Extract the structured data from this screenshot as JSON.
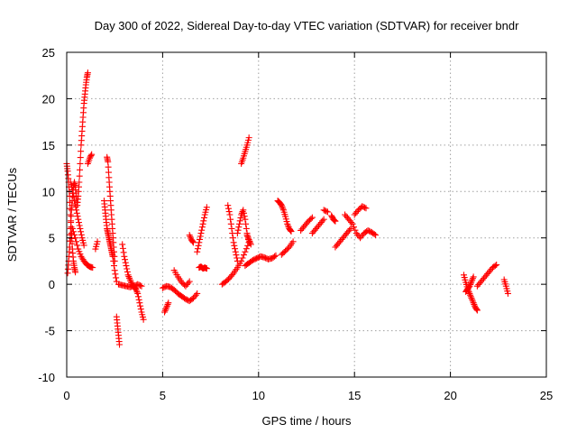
{
  "chart_data": {
    "type": "scatter",
    "title": "Day 300 of 2022, Sidereal Day-to-day VTEC variation (SDTVAR) for receiver bndr",
    "xlabel": "GPS time / hours",
    "ylabel": "SDTVAR / TECUs",
    "xlim": [
      0,
      25
    ],
    "ylim": [
      -10,
      25
    ],
    "x_ticks": [
      0,
      5,
      10,
      15,
      20,
      25
    ],
    "y_ticks": [
      -10,
      -5,
      0,
      5,
      10,
      15,
      20,
      25
    ],
    "x_tick_labels": [
      "0",
      "5",
      "10",
      "15",
      "20",
      "25"
    ],
    "y_tick_labels": [
      "-10",
      "-5",
      "0",
      "5",
      "10",
      "15",
      "20",
      "25"
    ],
    "grid": true,
    "marker": "+",
    "color": "#ff0000",
    "series": [
      {
        "x": [
          0.0,
          0.05,
          0.1,
          0.15,
          0.2,
          0.25,
          0.3,
          0.35,
          0.4,
          0.45
        ],
        "y": [
          13.0,
          12.2,
          11.0,
          9.5,
          7.5,
          5.5,
          3.8,
          2.5,
          1.8,
          1.3
        ]
      },
      {
        "x": [
          0.05,
          0.1,
          0.15,
          0.2,
          0.25,
          0.3,
          0.35,
          0.4,
          0.45,
          0.5,
          0.55,
          0.6,
          0.65,
          0.7,
          0.75,
          0.8,
          0.85,
          0.9,
          0.95,
          1.0,
          1.05,
          1.1
        ],
        "y": [
          1.2,
          2.5,
          4.0,
          6.0,
          8.0,
          9.5,
          10.5,
          11.0,
          10.5,
          9.5,
          8.5,
          9.5,
          11.0,
          13.0,
          15.0,
          16.5,
          18.0,
          19.5,
          20.5,
          21.5,
          22.3,
          22.8
        ]
      },
      {
        "x": [
          0.15,
          0.3,
          0.45,
          0.6,
          0.75,
          0.9,
          1.05,
          1.2,
          1.35
        ],
        "y": [
          4.0,
          6.0,
          5.0,
          3.8,
          3.0,
          2.5,
          2.1,
          1.9,
          1.8
        ]
      },
      {
        "x": [
          0.2,
          0.3,
          0.4,
          0.5,
          0.6,
          0.7,
          0.8,
          0.9
        ],
        "y": [
          11.0,
          10.2,
          9.0,
          8.0,
          7.0,
          6.0,
          5.0,
          4.2
        ]
      },
      {
        "x": [
          1.1,
          1.2,
          1.3
        ],
        "y": [
          13.0,
          13.6,
          14.0
        ]
      },
      {
        "x": [
          1.5,
          1.6
        ],
        "y": [
          3.8,
          4.6
        ]
      },
      {
        "x": [
          1.95,
          2.0,
          2.05,
          2.1,
          2.15,
          2.2,
          2.25,
          2.3,
          2.35,
          2.4,
          2.5,
          2.6
        ],
        "y": [
          9.0,
          8.0,
          7.0,
          6.0,
          5.5,
          5.0,
          4.5,
          4.0,
          3.5,
          3.0,
          1.5,
          0.3
        ]
      },
      {
        "x": [
          2.1,
          2.15,
          2.2,
          2.25,
          2.3,
          2.35,
          2.4,
          2.45,
          2.5
        ],
        "y": [
          13.7,
          13.2,
          11.5,
          10.0,
          8.5,
          7.0,
          5.5,
          4.0,
          2.5
        ]
      },
      {
        "x": [
          2.6,
          2.65,
          2.7,
          2.75
        ],
        "y": [
          -3.5,
          -4.5,
          -5.5,
          -6.5
        ]
      },
      {
        "x": [
          2.9,
          3.0,
          3.1,
          3.2,
          3.3,
          3.4,
          3.5,
          3.6,
          3.7,
          3.8,
          3.9,
          4.0
        ],
        "y": [
          4.3,
          3.0,
          2.0,
          1.0,
          0.5,
          0.0,
          -0.3,
          -0.5,
          -1.0,
          -2.0,
          -3.0,
          -3.8
        ]
      },
      {
        "x": [
          2.7,
          2.9,
          3.1,
          3.3,
          3.5,
          3.7,
          3.9
        ],
        "y": [
          0.0,
          -0.1,
          -0.2,
          -0.3,
          -0.2,
          0.0,
          -0.2
        ]
      },
      {
        "x": [
          5.0,
          5.2,
          5.4,
          5.6,
          5.8,
          6.0,
          6.2,
          6.4,
          6.6,
          6.8
        ],
        "y": [
          -0.4,
          -0.2,
          -0.3,
          -0.6,
          -1.0,
          -1.3,
          -1.6,
          -1.8,
          -1.5,
          -1.0
        ]
      },
      {
        "x": [
          5.1,
          5.2,
          5.3
        ],
        "y": [
          -3.0,
          -2.5,
          -2.0
        ]
      },
      {
        "x": [
          5.6,
          5.8,
          6.0,
          6.2,
          6.4
        ],
        "y": [
          1.5,
          0.8,
          0.2,
          -0.2,
          0.3
        ]
      },
      {
        "x": [
          6.4,
          6.5,
          6.6
        ],
        "y": [
          5.3,
          4.8,
          4.5
        ]
      },
      {
        "x": [
          6.8,
          6.9,
          7.0,
          7.1,
          7.2,
          7.3
        ],
        "y": [
          3.5,
          4.5,
          5.5,
          6.5,
          7.5,
          8.3
        ]
      },
      {
        "x": [
          6.9,
          7.0,
          7.1,
          7.2,
          7.3
        ],
        "y": [
          1.8,
          1.9,
          1.7,
          1.8,
          1.7
        ]
      },
      {
        "x": [
          8.1,
          8.3,
          8.5,
          8.7,
          8.9,
          9.1,
          9.3,
          9.5
        ],
        "y": [
          0.0,
          0.3,
          0.7,
          1.2,
          1.8,
          2.5,
          3.5,
          4.5
        ]
      },
      {
        "x": [
          8.4,
          8.5,
          8.6,
          8.7,
          8.8,
          8.9
        ],
        "y": [
          8.5,
          7.5,
          6.0,
          4.5,
          3.5,
          2.5
        ]
      },
      {
        "x": [
          8.9,
          9.0,
          9.1,
          9.2,
          9.3,
          9.4,
          9.5
        ],
        "y": [
          5.5,
          6.5,
          7.5,
          8.0,
          7.0,
          5.5,
          4.5
        ]
      },
      {
        "x": [
          9.1,
          9.2,
          9.3,
          9.4,
          9.5
        ],
        "y": [
          13.0,
          13.6,
          14.3,
          15.0,
          15.8
        ]
      },
      {
        "x": [
          9.3,
          9.5,
          9.7,
          9.9,
          10.1,
          10.3,
          10.5,
          10.7,
          10.9
        ],
        "y": [
          2.0,
          2.3,
          2.6,
          2.8,
          3.0,
          2.9,
          2.7,
          2.8,
          3.1
        ]
      },
      {
        "x": [
          9.4,
          9.5,
          9.6
        ],
        "y": [
          5.3,
          4.8,
          4.3
        ]
      },
      {
        "x": [
          11.0,
          11.1,
          11.2,
          11.3,
          11.4,
          11.5,
          11.6,
          11.7
        ],
        "y": [
          9.0,
          8.8,
          8.5,
          8.0,
          7.3,
          6.5,
          6.0,
          5.7
        ]
      },
      {
        "x": [
          11.2,
          11.4,
          11.6,
          11.8
        ],
        "y": [
          3.2,
          3.6,
          4.0,
          4.6
        ]
      },
      {
        "x": [
          12.2,
          12.4,
          12.6,
          12.8
        ],
        "y": [
          5.8,
          6.3,
          6.8,
          7.2
        ]
      },
      {
        "x": [
          12.8,
          13.0,
          13.2,
          13.4
        ],
        "y": [
          5.5,
          6.0,
          6.5,
          7.0
        ]
      },
      {
        "x": [
          13.4,
          13.6
        ],
        "y": [
          8.0,
          7.8
        ]
      },
      {
        "x": [
          13.8,
          13.9,
          14.0
        ],
        "y": [
          7.4,
          7.0,
          6.8
        ]
      },
      {
        "x": [
          14.0,
          14.2,
          14.4,
          14.6,
          14.8
        ],
        "y": [
          4.0,
          4.5,
          5.0,
          5.5,
          6.0
        ]
      },
      {
        "x": [
          14.5,
          14.7,
          14.9,
          15.1,
          15.3,
          15.5,
          15.7,
          15.9,
          16.1
        ],
        "y": [
          7.5,
          7.0,
          6.5,
          5.5,
          5.0,
          5.5,
          5.8,
          5.6,
          5.3
        ]
      },
      {
        "x": [
          15.0,
          15.2,
          15.4,
          15.6
        ],
        "y": [
          7.5,
          8.0,
          8.4,
          8.2
        ]
      },
      {
        "x": [
          20.7,
          20.8,
          20.9,
          21.0,
          21.1,
          21.2,
          21.3,
          21.4
        ],
        "y": [
          1.0,
          0.2,
          -0.5,
          -1.0,
          -1.5,
          -2.0,
          -2.5,
          -2.8
        ]
      },
      {
        "x": [
          20.8,
          20.9,
          21.0,
          21.1,
          21.2
        ],
        "y": [
          -0.8,
          -0.5,
          -0.2,
          0.3,
          0.8
        ]
      },
      {
        "x": [
          21.4,
          21.6,
          21.8,
          22.0,
          22.2,
          22.4
        ],
        "y": [
          -0.2,
          0.3,
          0.8,
          1.3,
          1.8,
          2.1
        ]
      },
      {
        "x": [
          22.8,
          22.9,
          23.0
        ],
        "y": [
          0.5,
          -0.2,
          -1.0
        ]
      }
    ]
  }
}
